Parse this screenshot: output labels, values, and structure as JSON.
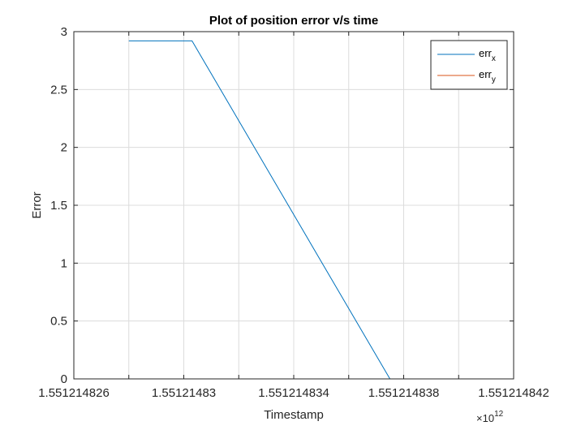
{
  "chart_data": {
    "type": "line",
    "title": "Plot of position error v/s time",
    "xlabel": "Timestamp",
    "ylabel": "Error",
    "x_exponent_label": {
      "base": "×10",
      "exp": "12"
    },
    "xlim": [
      1.551214826,
      1.551214842
    ],
    "ylim": [
      0,
      3
    ],
    "x_ticks": [
      1.551214826,
      1.551214828,
      1.55121483,
      1.551214832,
      1.551214834,
      1.551214836,
      1.551214838,
      1.55121484,
      1.551214842
    ],
    "x_tick_labels": [
      "1.551214826",
      "1.55121483",
      "1.551214834",
      "1.551214838",
      "1.551214842"
    ],
    "x_tick_label_values": [
      1.551214826,
      1.55121483,
      1.551214834,
      1.551214838,
      1.551214842
    ],
    "y_ticks": [
      0,
      0.5,
      1,
      1.5,
      2,
      2.5,
      3
    ],
    "y_tick_labels": [
      "0",
      "0.5",
      "1",
      "1.5",
      "2",
      "2.5",
      "3"
    ],
    "grid": true,
    "legend_position": "top-right",
    "series": [
      {
        "name_base": "err",
        "name_sub": "x",
        "color": "#0072BD",
        "x": [
          1.551214828,
          1.5512148303,
          1.5512148375,
          1.551214842
        ],
        "y": [
          2.92,
          2.92,
          0.0,
          0.0
        ]
      },
      {
        "name_base": "err",
        "name_sub": "y",
        "color": "#D95319",
        "x": [
          1.551214828,
          1.551214842
        ],
        "y": [
          0.0,
          0.0
        ]
      }
    ]
  }
}
